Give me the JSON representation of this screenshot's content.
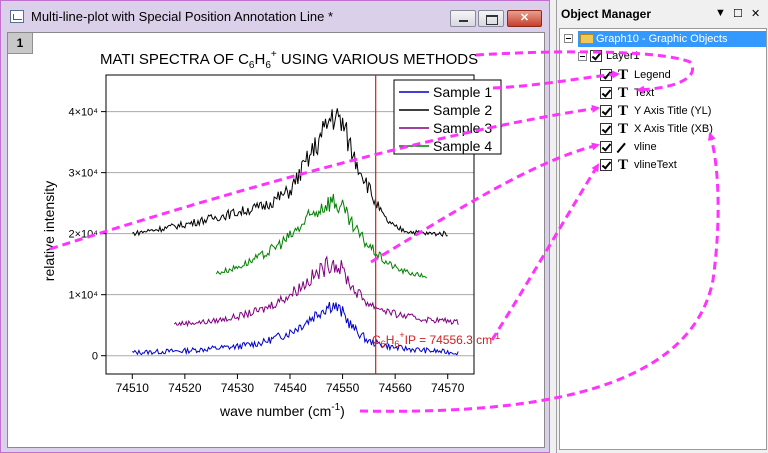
{
  "window": {
    "title": "Multi-line-plot with Special Position Annotation Line *",
    "layer_label": "1"
  },
  "graph": {
    "title_line": "MATI SPECTRA OF C6H6+ USING VARIOUS METHODS",
    "title_parts": {
      "pre": "MATI SPECTRA OF C",
      "sub1": "6",
      "mid": "H",
      "sub2": "6",
      "sup": "+",
      "post": " USING VARIOUS METHODS"
    },
    "xlabel": "wave number (cm",
    "xlabel_sup": "-1",
    "xlabel_close": ")",
    "ylabel": "relative intensity",
    "annotation_parts": {
      "pre": "C",
      "sub1": "6",
      "mid": "H",
      "sub2": "6",
      "sup": "+",
      "text": "IP = 74556.3 cm",
      "unit_sup": "-1"
    },
    "legend": [
      "Sample 1",
      "Sample 2",
      "Sample 3",
      "Sample 4"
    ]
  },
  "chart_data": {
    "type": "line",
    "title": "MATI SPECTRA OF C6H6+ USING VARIOUS METHODS",
    "xlabel": "wave number (cm-1)",
    "ylabel": "relative intensity",
    "xlim": [
      74505,
      74575
    ],
    "ylim": [
      -3000,
      46000
    ],
    "x_ticks": [
      74510,
      74520,
      74530,
      74540,
      74550,
      74560,
      74570
    ],
    "y_ticks": [
      {
        "value": 0,
        "label": "0"
      },
      {
        "value": 10000,
        "label": "1×10⁴"
      },
      {
        "value": 20000,
        "label": "2×10⁴"
      },
      {
        "value": 30000,
        "label": "3×10⁴"
      },
      {
        "value": 40000,
        "label": "4×10⁴"
      }
    ],
    "grid": "horizontal",
    "legend_position": "top-right",
    "vline": {
      "x": 74556.3,
      "color": "#d02020"
    },
    "series": [
      {
        "name": "Sample 1",
        "color": "#0000c8",
        "x": [
          74510,
          74520,
          74530,
          74535,
          74540,
          74543,
          74546,
          74548,
          74550,
          74552,
          74555,
          74560,
          74565,
          74570,
          74572
        ],
        "values": [
          500,
          800,
          1500,
          2200,
          3800,
          5500,
          7500,
          8500,
          7000,
          4500,
          2300,
          1300,
          900,
          600,
          500
        ]
      },
      {
        "name": "Sample 2",
        "color": "#000000",
        "x": [
          74510,
          74520,
          74525,
          74530,
          74535,
          74538,
          74540,
          74542,
          74544,
          74546,
          74548,
          74550,
          74552,
          74554,
          74556,
          74558,
          74560,
          74563,
          74566,
          74570
        ],
        "values": [
          20000,
          21500,
          22500,
          23500,
          24500,
          26000,
          27000,
          30000,
          33000,
          36000,
          39500,
          38000,
          33000,
          29500,
          25500,
          22500,
          21000,
          20300,
          20000,
          20000
        ]
      },
      {
        "name": "Sample 3",
        "color": "#800080",
        "x": [
          74518,
          74525,
          74530,
          74535,
          74540,
          74543,
          74546,
          74548,
          74550,
          74552,
          74555,
          74560,
          74565,
          74570,
          74572
        ],
        "values": [
          5200,
          5600,
          6400,
          7600,
          10000,
          12000,
          14000,
          15500,
          14000,
          11000,
          8500,
          6800,
          6000,
          5700,
          5500
        ]
      },
      {
        "name": "Sample 4",
        "color": "#008000",
        "x": [
          74526,
          74530,
          74535,
          74540,
          74543,
          74546,
          74548,
          74550,
          74552,
          74555,
          74558,
          74561,
          74564,
          74566
        ],
        "values": [
          13500,
          14500,
          16500,
          19500,
          22000,
          24500,
          25500,
          24000,
          21000,
          18000,
          15500,
          14000,
          13300,
          13000
        ]
      }
    ]
  },
  "object_manager": {
    "title": "Object Manager",
    "pin_icon": "▼",
    "float_icon": "☐",
    "close_icon": "✕",
    "graph_node": "Graph10 - Graphic Objects",
    "layer_node": "Layer1",
    "items": [
      {
        "label": "Legend",
        "icon": "text-icon"
      },
      {
        "label": "Text",
        "icon": "text-icon"
      },
      {
        "label": "Y Axis Title (YL)",
        "icon": "text-icon"
      },
      {
        "label": "X Axis Title (XB)",
        "icon": "text-icon"
      },
      {
        "label": "vline",
        "icon": "line-icon"
      },
      {
        "label": "vlineText",
        "icon": "text-icon"
      }
    ],
    "text_icon_glyph": "T"
  },
  "colors": {
    "window_frame": "#dbd0ea",
    "selection": "#3399ff",
    "connector": "#ff33ff",
    "annotation": "#d02020"
  }
}
